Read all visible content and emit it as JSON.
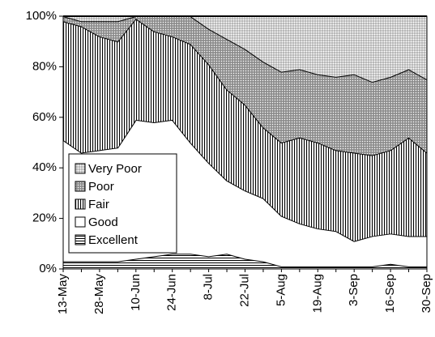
{
  "chart_data": {
    "type": "stacked-area-100",
    "categories": [
      "13-May",
      null,
      "28-May",
      null,
      "10-Jun",
      null,
      "24-Jun",
      null,
      "8-Jul",
      null,
      "22-Jul",
      null,
      "5-Aug",
      null,
      "19-Aug",
      null,
      "3-Sep",
      null,
      "16-Sep",
      null,
      "30-Sep"
    ],
    "series": [
      {
        "name": "Excellent",
        "color": "#000000",
        "pattern": "hlines",
        "values": [
          3,
          3,
          3,
          3,
          4,
          5,
          6,
          6,
          5,
          6,
          4,
          3,
          1,
          1,
          1,
          1,
          1,
          1,
          2,
          1,
          1
        ]
      },
      {
        "name": "Good",
        "color": "#ffffff",
        "pattern": "solid",
        "values": [
          48,
          43,
          44,
          45,
          55,
          53,
          53,
          44,
          37,
          29,
          27,
          25,
          20,
          17,
          15,
          14,
          10,
          12,
          12,
          12,
          12
        ]
      },
      {
        "name": "Fair",
        "color": "#000000",
        "pattern": "vlines",
        "values": [
          47,
          50,
          45,
          42,
          40,
          36,
          33,
          39,
          39,
          36,
          34,
          28,
          29,
          34,
          34,
          32,
          35,
          32,
          33,
          39,
          33
        ]
      },
      {
        "name": "Poor",
        "color": "#a0a0a0",
        "pattern": "dots",
        "values": [
          2,
          2,
          6,
          8,
          1,
          6,
          8,
          11,
          14,
          20,
          22,
          26,
          28,
          27,
          27,
          29,
          31,
          29,
          29,
          27,
          29
        ]
      },
      {
        "name": "Very Poor",
        "color": "#d8d8d8",
        "pattern": "dots",
        "values": [
          0,
          2,
          2,
          2,
          0,
          0,
          0,
          0,
          5,
          9,
          13,
          18,
          22,
          21,
          23,
          24,
          23,
          26,
          24,
          21,
          25
        ]
      }
    ],
    "ylim": [
      0,
      100
    ],
    "yticks": [
      {
        "value": 0,
        "label": "0%"
      },
      {
        "value": 20,
        "label": "20%"
      },
      {
        "value": 40,
        "label": "40%"
      },
      {
        "value": 60,
        "label": "60%"
      },
      {
        "value": 80,
        "label": "80%"
      },
      {
        "value": 100,
        "label": "100%"
      }
    ],
    "legend": "lower left"
  }
}
